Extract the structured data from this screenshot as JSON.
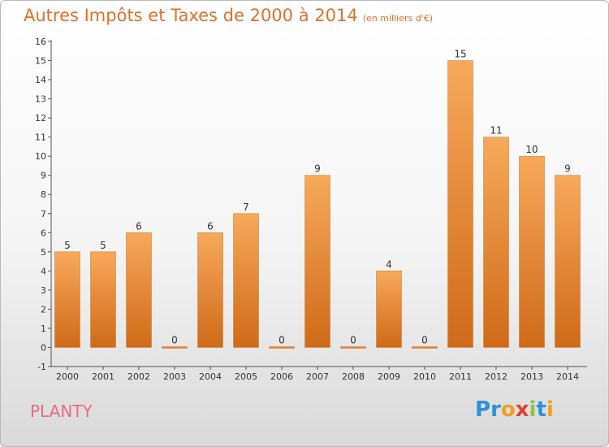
{
  "title": "Autres Impôts et Taxes de 2000 à 2014",
  "subtitle": "(en milliers d'€)",
  "commune": "PLANTY",
  "logo": {
    "letters": [
      "P",
      "r",
      "o",
      "x",
      "i",
      "t",
      "i"
    ],
    "colors": [
      "#2f8fd8",
      "#2f8fd8",
      "#f0a020",
      "#e0402a",
      "#8cc63f",
      "#2f8fd8",
      "#f0a020"
    ]
  },
  "colors": {
    "bar_top": "#f7a95a",
    "bar_bottom": "#cf6a18",
    "axis": "#555555",
    "text": "#333333"
  },
  "chart_data": {
    "type": "bar",
    "title": "Autres Impôts et Taxes de 2000 à 2014",
    "subtitle": "(en milliers d'€)",
    "categories": [
      "2000",
      "2001",
      "2002",
      "2003",
      "2004",
      "2005",
      "2006",
      "2007",
      "2008",
      "2009",
      "2010",
      "2011",
      "2012",
      "2013",
      "2014"
    ],
    "values": [
      5,
      5,
      6,
      0,
      6,
      7,
      0,
      9,
      0,
      4,
      0,
      15,
      11,
      10,
      9
    ],
    "ylim": [
      -1,
      16
    ],
    "yticks": [
      -1,
      0,
      1,
      2,
      3,
      4,
      5,
      6,
      7,
      8,
      9,
      10,
      11,
      12,
      13,
      14,
      15,
      16
    ],
    "xlabel": "",
    "ylabel": "",
    "grid": false,
    "legend": "none"
  }
}
